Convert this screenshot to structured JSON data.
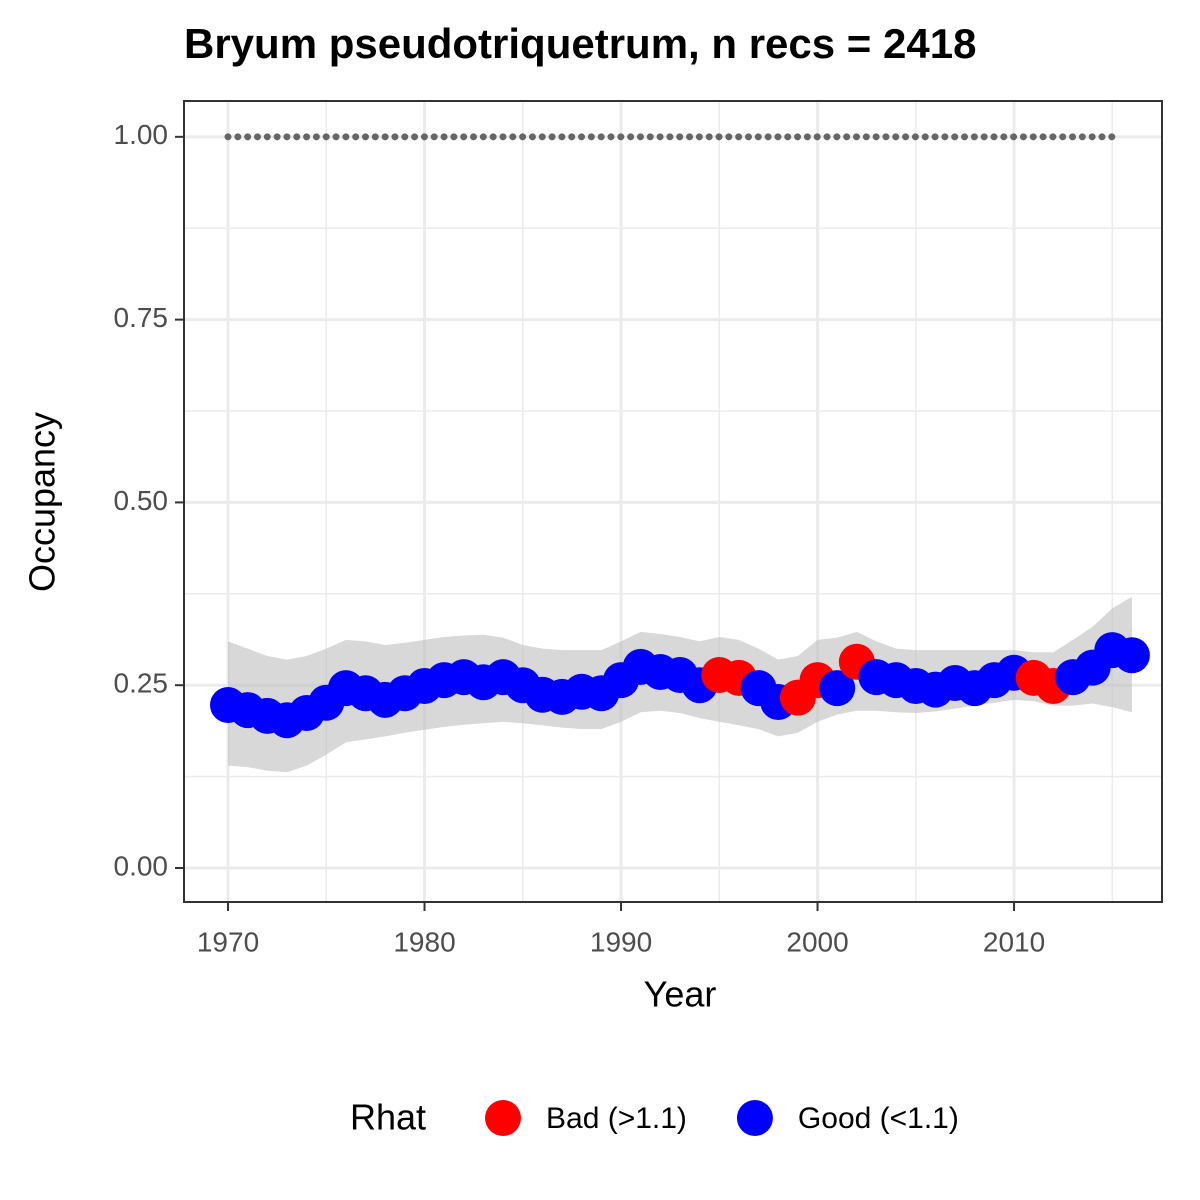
{
  "chart_data": {
    "type": "scatter",
    "title": "Bryum pseudotriquetrum, n recs = 2418",
    "x_label": "Year",
    "y_label": "Occupancy",
    "legend_title": "Rhat",
    "x": [
      1970,
      1971,
      1972,
      1973,
      1974,
      1975,
      1976,
      1977,
      1978,
      1979,
      1980,
      1981,
      1982,
      1983,
      1984,
      1985,
      1986,
      1987,
      1988,
      1989,
      1990,
      1991,
      1992,
      1993,
      1994,
      1995,
      1996,
      1997,
      1998,
      1999,
      2000,
      2001,
      2002,
      2003,
      2004,
      2005,
      2006,
      2007,
      2008,
      2009,
      2010,
      2011,
      2012,
      2013,
      2014,
      2015,
      2016
    ],
    "series": [
      {
        "name": "Bad (>1.1)",
        "color": "#ff0000",
        "values": [
          null,
          null,
          null,
          null,
          null,
          null,
          null,
          null,
          null,
          null,
          null,
          null,
          null,
          null,
          null,
          null,
          null,
          null,
          null,
          null,
          null,
          null,
          null,
          null,
          null,
          0.264,
          0.26,
          null,
          null,
          0.233,
          0.257,
          null,
          0.282,
          null,
          null,
          null,
          null,
          null,
          null,
          null,
          null,
          0.26,
          0.249,
          null,
          null,
          null,
          null
        ]
      },
      {
        "name": "Good (<1.1)",
        "color": "#0000ff",
        "values": [
          0.223,
          0.216,
          0.208,
          0.202,
          0.212,
          0.226,
          0.246,
          0.239,
          0.23,
          0.239,
          0.249,
          0.257,
          0.261,
          0.254,
          0.261,
          0.25,
          0.237,
          0.234,
          0.241,
          0.239,
          0.257,
          0.275,
          0.268,
          0.264,
          0.25,
          null,
          null,
          0.246,
          0.227,
          null,
          null,
          0.246,
          null,
          0.261,
          0.257,
          0.249,
          0.244,
          0.253,
          0.246,
          0.257,
          0.267,
          null,
          null,
          0.261,
          0.274,
          0.298,
          0.291
        ]
      }
    ],
    "lower": [
      0.14,
      0.138,
      0.133,
      0.131,
      0.14,
      0.155,
      0.172,
      0.176,
      0.18,
      0.185,
      0.189,
      0.193,
      0.196,
      0.198,
      0.2,
      0.198,
      0.195,
      0.192,
      0.19,
      0.19,
      0.2,
      0.213,
      0.215,
      0.212,
      0.205,
      0.2,
      0.195,
      0.19,
      0.18,
      0.185,
      0.2,
      0.21,
      0.215,
      0.215,
      0.213,
      0.212,
      0.214,
      0.218,
      0.222,
      0.226,
      0.23,
      0.228,
      0.222,
      0.222,
      0.225,
      0.22,
      0.213
    ],
    "upper": [
      0.31,
      0.3,
      0.29,
      0.285,
      0.29,
      0.3,
      0.312,
      0.31,
      0.305,
      0.308,
      0.312,
      0.316,
      0.318,
      0.319,
      0.315,
      0.305,
      0.3,
      0.298,
      0.298,
      0.298,
      0.31,
      0.323,
      0.32,
      0.316,
      0.31,
      0.316,
      0.312,
      0.3,
      0.285,
      0.29,
      0.312,
      0.315,
      0.323,
      0.31,
      0.3,
      0.298,
      0.298,
      0.298,
      0.298,
      0.298,
      0.298,
      0.295,
      0.295,
      0.312,
      0.33,
      0.355,
      0.371
    ],
    "ribbon_color": "#bebebe",
    "reference_line": {
      "value": 1,
      "x": [
        1970,
        2015
      ],
      "color": "#666666"
    },
    "xlim": [
      1967.76,
      2017.53
    ],
    "ylim": [
      -0.0465,
      1.049
    ],
    "xticks": [
      1970,
      1980,
      1990,
      2000,
      2010
    ],
    "yticks": [
      {
        "value": 0,
        "label": "0.00"
      },
      {
        "value": 0.25,
        "label": "0.25"
      },
      {
        "value": 0.5,
        "label": "0.50"
      },
      {
        "value": 0.75,
        "label": "0.75"
      },
      {
        "value": 1,
        "label": "1.00"
      }
    ],
    "x_minor_grid": [
      1975,
      1985,
      1995,
      2005,
      2015
    ],
    "y_minor_grid": [
      0.125,
      0.375,
      0.625,
      0.875
    ],
    "grid": true,
    "legend_position": "bottom"
  }
}
